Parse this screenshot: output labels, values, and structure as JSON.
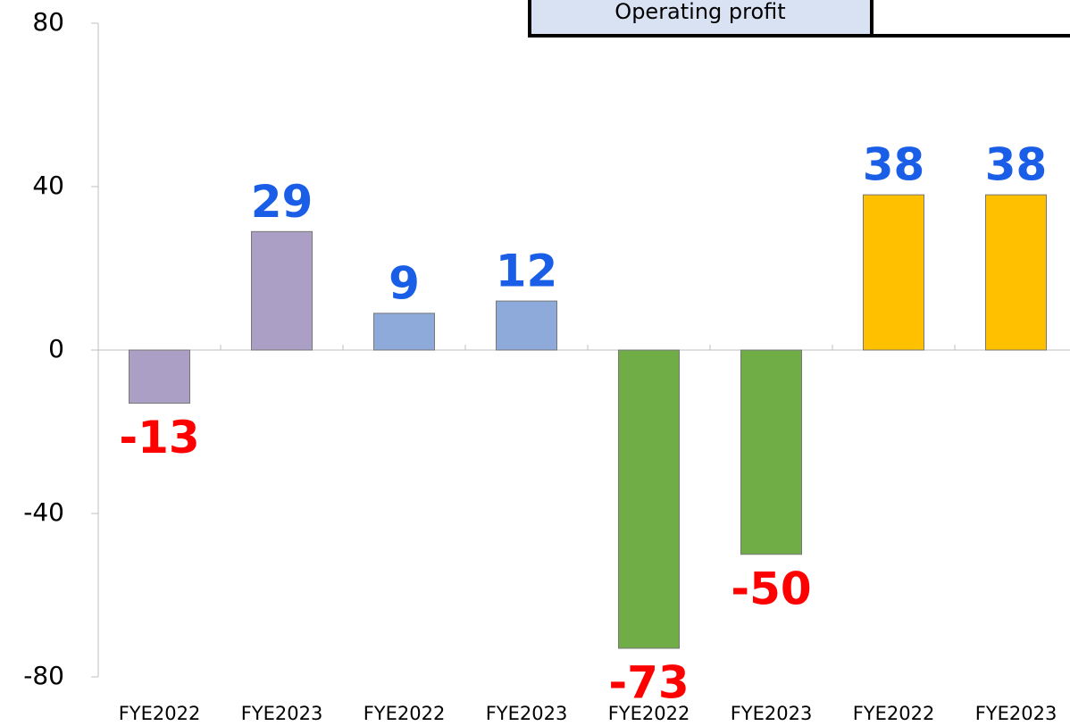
{
  "chart_data": {
    "type": "bar",
    "table_label": "Operating profit",
    "categories": [
      "FYE2022",
      "FYE2023",
      "FYE2022",
      "FYE2023",
      "FYE2022",
      "FYE2023",
      "FYE2022",
      "FYE2023"
    ],
    "values": [
      -13,
      29,
      9,
      12,
      -73,
      -50,
      38,
      38
    ],
    "colors": [
      "#ab9fc6",
      "#ab9fc6",
      "#8eaadb",
      "#8eaadb",
      "#70ad47",
      "#70ad47",
      "#ffc000",
      "#ffc000"
    ],
    "label_colors": {
      "positive": "#1a5ee8",
      "negative": "#ff0000"
    },
    "ylim": [
      -80,
      80
    ],
    "yticks": [
      -80,
      -40,
      0,
      40,
      80
    ]
  }
}
